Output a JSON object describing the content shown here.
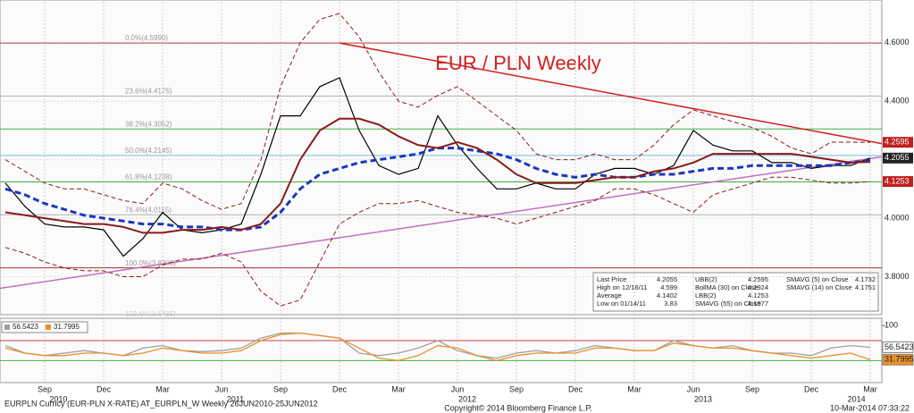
{
  "chart_data": {
    "type": "line",
    "title": "EUR / PLN Weekly",
    "categories": [
      null,
      null,
      "Sep",
      null,
      null,
      "Dec",
      null,
      null,
      "Mar",
      null,
      null,
      "Jun",
      null,
      null,
      "Sep",
      null,
      null,
      "Dec",
      null,
      null,
      "Mar",
      null,
      null,
      "Jun",
      null,
      null,
      "Sep",
      null,
      null,
      "Dec",
      null,
      null,
      "Mar",
      null,
      null,
      "Jun",
      null,
      null,
      "Sep",
      null,
      null,
      "Dec",
      null,
      null,
      "Mar"
    ],
    "years": [
      "2010",
      "2011",
      "2012",
      "2013",
      "2014"
    ],
    "ylim": [
      3.67,
      4.74
    ],
    "yticks": [
      {
        "value": 3.8,
        "label": "3.8000"
      },
      {
        "value": 4.0,
        "label": "4.0000"
      },
      {
        "value": 4.2,
        "label": "4.2000"
      },
      {
        "value": 4.4,
        "label": "4.4000"
      },
      {
        "value": 4.6,
        "label": "4.6000"
      }
    ],
    "series": [
      {
        "name": "Last Price",
        "color": "#000000",
        "values": [
          4.12,
          4.04,
          3.98,
          3.97,
          3.97,
          3.96,
          3.87,
          3.93,
          4.02,
          3.96,
          3.95,
          3.96,
          3.98,
          4.15,
          4.35,
          4.35,
          4.45,
          4.48,
          4.3,
          4.18,
          4.15,
          4.17,
          4.35,
          4.25,
          4.17,
          4.1,
          4.1,
          4.12,
          4.1,
          4.1,
          4.15,
          4.17,
          4.17,
          4.15,
          4.18,
          4.3,
          4.25,
          4.23,
          4.23,
          4.19,
          4.19,
          4.17,
          4.18,
          4.18,
          4.2055
        ]
      },
      {
        "name": "SMAVG (55) on Close",
        "color": "#1a36c0",
        "values": [
          4.1,
          4.08,
          4.05,
          4.03,
          4.01,
          4.0,
          3.99,
          3.98,
          3.98,
          3.97,
          3.97,
          3.96,
          3.96,
          3.97,
          4.02,
          4.1,
          4.15,
          4.17,
          4.19,
          4.2,
          4.21,
          4.22,
          4.24,
          4.24,
          4.23,
          4.22,
          4.2,
          4.17,
          4.15,
          4.14,
          4.15,
          4.14,
          4.14,
          4.15,
          4.15,
          4.16,
          4.17,
          4.17,
          4.18,
          4.18,
          4.18,
          4.18,
          4.18,
          4.19,
          4.1977
        ]
      },
      {
        "name": "BollMA (30) on Close",
        "color": "#8b1a1a",
        "values": [
          4.02,
          4.01,
          4.0,
          3.99,
          3.98,
          3.98,
          3.97,
          3.95,
          3.95,
          3.96,
          3.96,
          3.97,
          3.96,
          3.98,
          4.05,
          4.2,
          4.3,
          4.34,
          4.34,
          4.32,
          4.28,
          4.25,
          4.24,
          4.26,
          4.24,
          4.2,
          4.15,
          4.12,
          4.12,
          4.12,
          4.13,
          4.14,
          4.14,
          4.16,
          4.17,
          4.19,
          4.22,
          4.22,
          4.22,
          4.22,
          4.22,
          4.21,
          4.2,
          4.19,
          4.1924
        ]
      },
      {
        "name": "UBB(2)",
        "color": "#8b1a1a",
        "values": [
          4.2,
          4.16,
          4.12,
          4.1,
          4.1,
          4.08,
          4.06,
          4.05,
          4.12,
          4.1,
          4.06,
          4.03,
          4.05,
          4.2,
          4.45,
          4.6,
          4.68,
          4.7,
          4.62,
          4.5,
          4.4,
          4.38,
          4.42,
          4.45,
          4.4,
          4.35,
          4.3,
          4.22,
          4.2,
          4.2,
          4.22,
          4.2,
          4.2,
          4.25,
          4.32,
          4.37,
          4.35,
          4.33,
          4.31,
          4.28,
          4.24,
          4.22,
          4.26,
          4.26,
          4.2595
        ]
      },
      {
        "name": "LBB(2)",
        "color": "#8b1a1a",
        "values": [
          3.9,
          3.88,
          3.85,
          3.83,
          3.82,
          3.82,
          3.8,
          3.8,
          3.84,
          3.86,
          3.86,
          3.88,
          3.85,
          3.75,
          3.7,
          3.72,
          3.85,
          3.98,
          4.02,
          4.05,
          4.05,
          4.06,
          4.04,
          4.02,
          4.01,
          4.0,
          3.98,
          4.0,
          4.02,
          4.04,
          4.06,
          4.1,
          4.1,
          4.08,
          4.05,
          4.02,
          4.08,
          4.1,
          4.12,
          4.14,
          4.14,
          4.13,
          4.12,
          4.12,
          4.1253
        ]
      }
    ],
    "fib_levels": [
      {
        "value": 4.599,
        "label": "0.0%(4.5990)",
        "color": "#c04040"
      },
      {
        "value": 4.4175,
        "label": "23.6%(4.4175)",
        "color": "#b0b0b0"
      },
      {
        "value": 4.3052,
        "label": "38.2%(4.3052)",
        "color": "#40b040"
      },
      {
        "value": 4.2145,
        "label": "50.0%(4.2145)",
        "color": "#70c0e0"
      },
      {
        "value": 4.1238,
        "label": "61.8%(4.1238)",
        "color": "#40b040"
      },
      {
        "value": 4.0115,
        "label": "76.4%(4.0115)",
        "color": "#b0b0b0"
      },
      {
        "value": 3.83,
        "label": "100.0%(3.8300)",
        "color": "#a03030"
      },
      {
        "value": 3.6485,
        "label": "123.6%(3.6485)",
        "color": "#b0b0b0"
      }
    ],
    "trend_lines": [
      {
        "color": "#d02020",
        "values": [
          4.599,
          4.255
        ]
      },
      {
        "color": "#c070c0",
        "values": [
          3.76,
          4.21
        ]
      }
    ],
    "legend": [
      {
        "label": "Last Price",
        "value": 4.2055
      },
      {
        "label": "High on 12/16/11",
        "value": 4.599
      },
      {
        "label": "Average",
        "value": 4.1402
      },
      {
        "label": "Low on 01/14/11",
        "value": 3.83
      },
      {
        "label": "UBB(2)",
        "value": 4.2595
      },
      {
        "label": "BollMA (30) on Close",
        "value": 4.1924
      },
      {
        "label": "LBB(2)",
        "value": 4.1253
      },
      {
        "label": "SMAVG (55) on Close",
        "value": 4.1977
      },
      {
        "label": "SMAVG (5) on Close",
        "value": 4.1732
      },
      {
        "label": "SMAVG (14) on Close",
        "value": 4.1751
      }
    ],
    "lower_panel": {
      "ylim": [
        -14,
        111
      ],
      "yticks": [
        100
      ],
      "ref_lines": [
        {
          "value": 70,
          "color": "#d04040"
        },
        {
          "value": 30,
          "color": "#40b040"
        }
      ],
      "series": [
        {
          "color": "#a0a0a0",
          "values": [
            60,
            45,
            40,
            45,
            50,
            45,
            40,
            55,
            60,
            50,
            48,
            50,
            55,
            75,
            85,
            85,
            80,
            75,
            45,
            40,
            45,
            55,
            70,
            50,
            40,
            35,
            45,
            50,
            45,
            50,
            60,
            55,
            50,
            50,
            70,
            60,
            55,
            60,
            50,
            45,
            45,
            40,
            55,
            60,
            56.5423
          ]
        },
        {
          "color": "#e8902a",
          "values": [
            55,
            45,
            40,
            40,
            45,
            45,
            40,
            45,
            55,
            50,
            45,
            45,
            50,
            70,
            82,
            85,
            80,
            75,
            55,
            35,
            30,
            40,
            60,
            55,
            40,
            30,
            40,
            45,
            45,
            45,
            55,
            55,
            50,
            50,
            65,
            60,
            55,
            55,
            50,
            45,
            40,
            35,
            40,
            45,
            31.7995
          ]
        }
      ]
    },
    "footer": {
      "left": "EURPLN Curncy (EUR-PLN X-RATE) AT_EURPLN_W  Weekly 26JUN2010-25JUN2012",
      "center": "Copyright© 2014 Bloomberg Finance L.P.",
      "right": "10-Mar-2014 07:33:22"
    }
  }
}
